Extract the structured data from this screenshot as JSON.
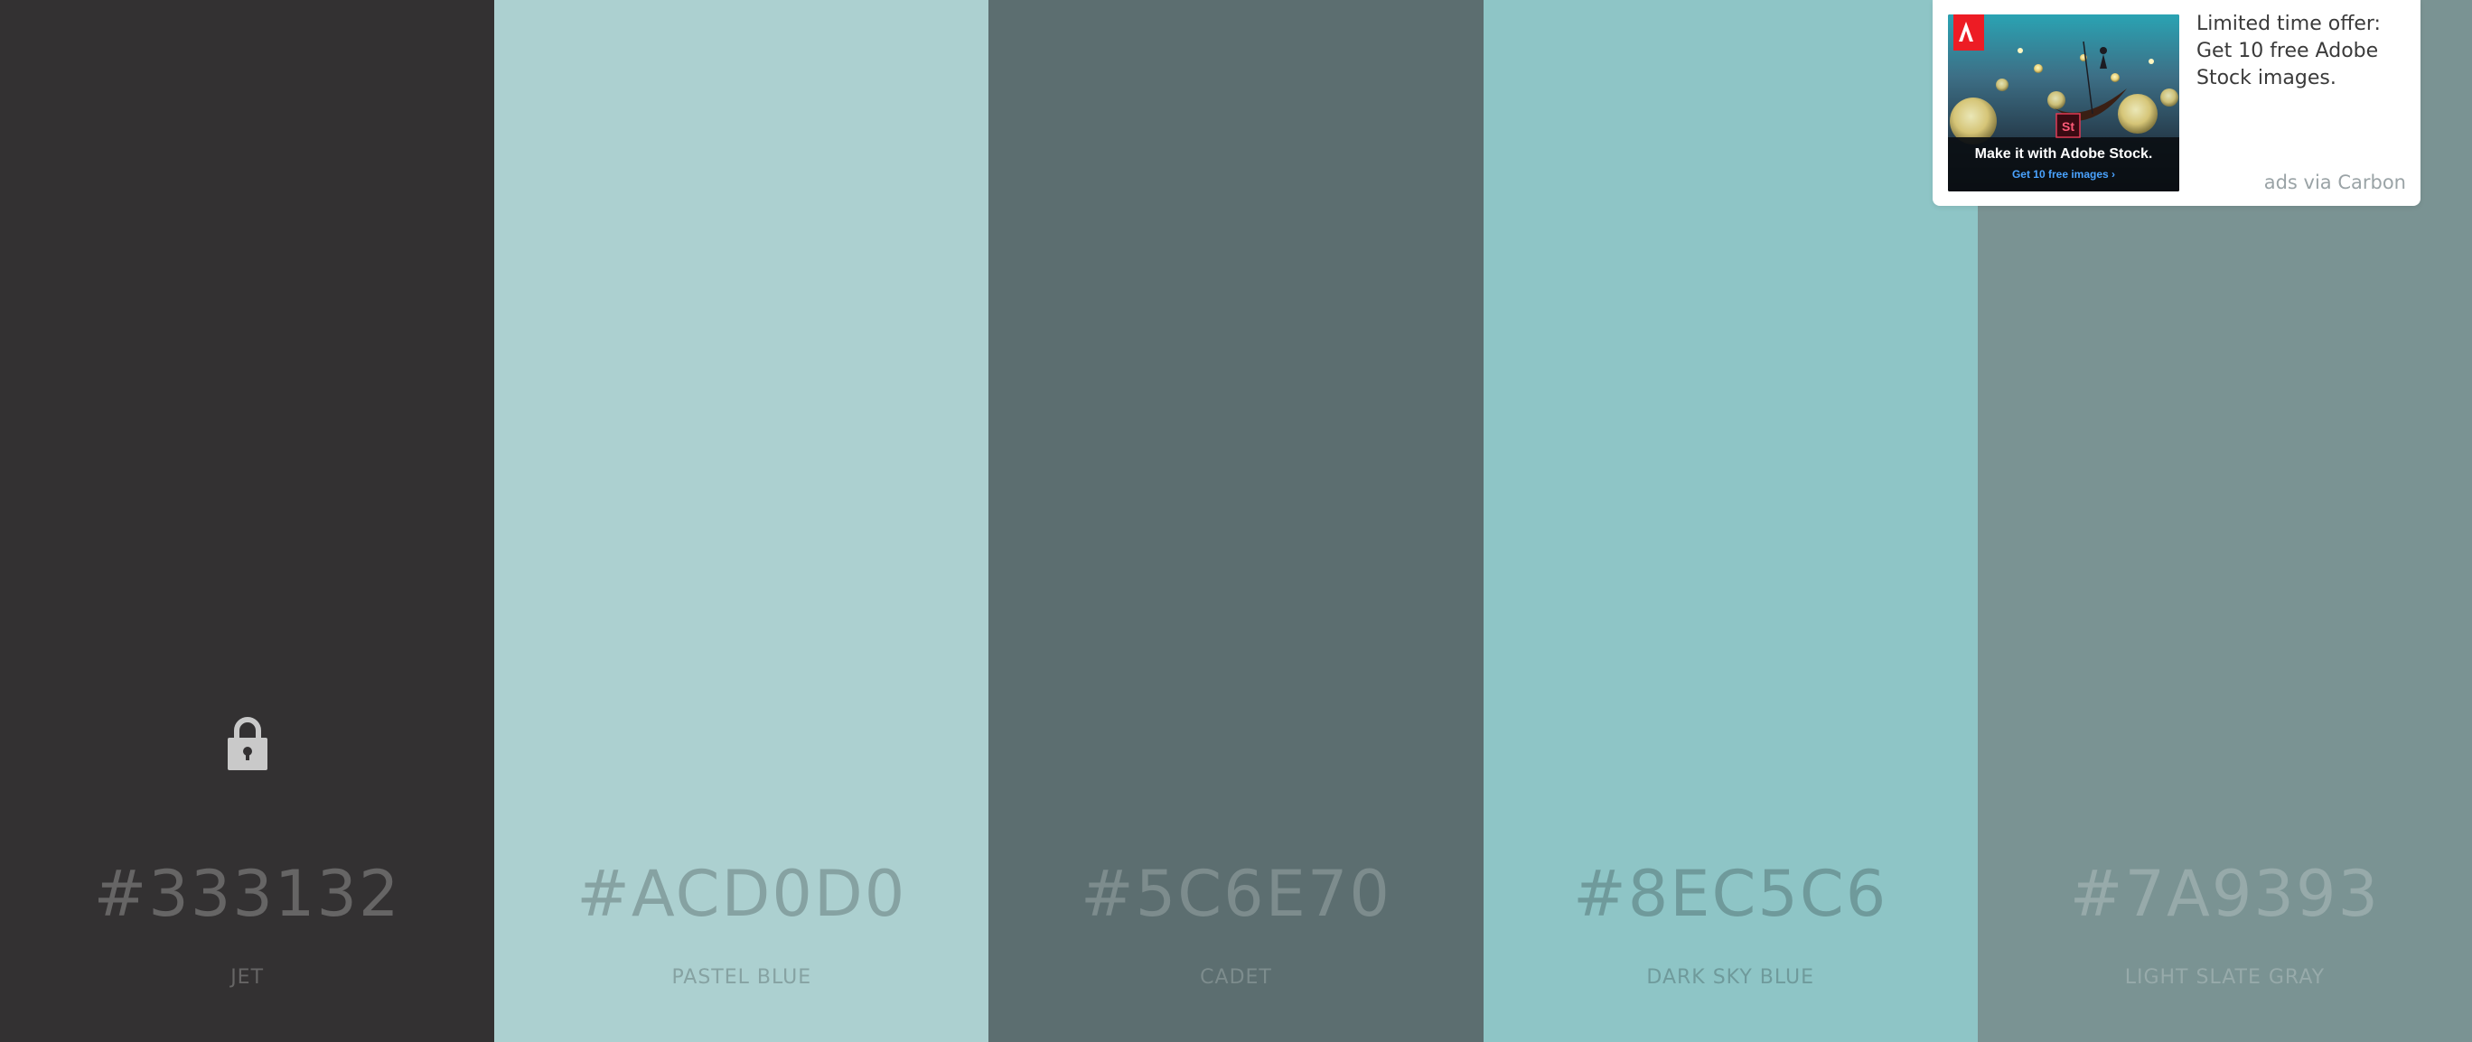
{
  "palette": {
    "colors": [
      {
        "hex": "#333132",
        "name": "JET",
        "background": "#333132",
        "text_color": "#666565",
        "locked": true
      },
      {
        "hex": "#ACD0D0",
        "name": "PASTEL BLUE",
        "background": "#ACD0D0",
        "text_color": "#86A2A2",
        "locked": false
      },
      {
        "hex": "#5C6E70",
        "name": "CADET",
        "background": "#5C6E70",
        "text_color": "#7D8C8D",
        "locked": false
      },
      {
        "hex": "#8EC5C6",
        "name": "DARK SKY BLUE",
        "background": "#8EC5C6",
        "text_color": "#6F9A9B",
        "locked": false
      },
      {
        "hex": "#7A9393",
        "name": "LIGHT SLATE GRAY",
        "background": "#7A9393",
        "text_color": "#97AAAA",
        "locked": false
      }
    ],
    "lock_icon": "lock-icon",
    "lock_color": "#c9c9c9"
  },
  "ad": {
    "text": "Limited time offer: Get 10 free Adobe Stock images.",
    "via": "ads via Carbon",
    "image_headline": "Make it with Adobe Stock.",
    "image_cta": "Get 10 free images ›",
    "brand_logo": "adobe-logo-icon",
    "badge": "St",
    "accent": "#ed1c24"
  }
}
